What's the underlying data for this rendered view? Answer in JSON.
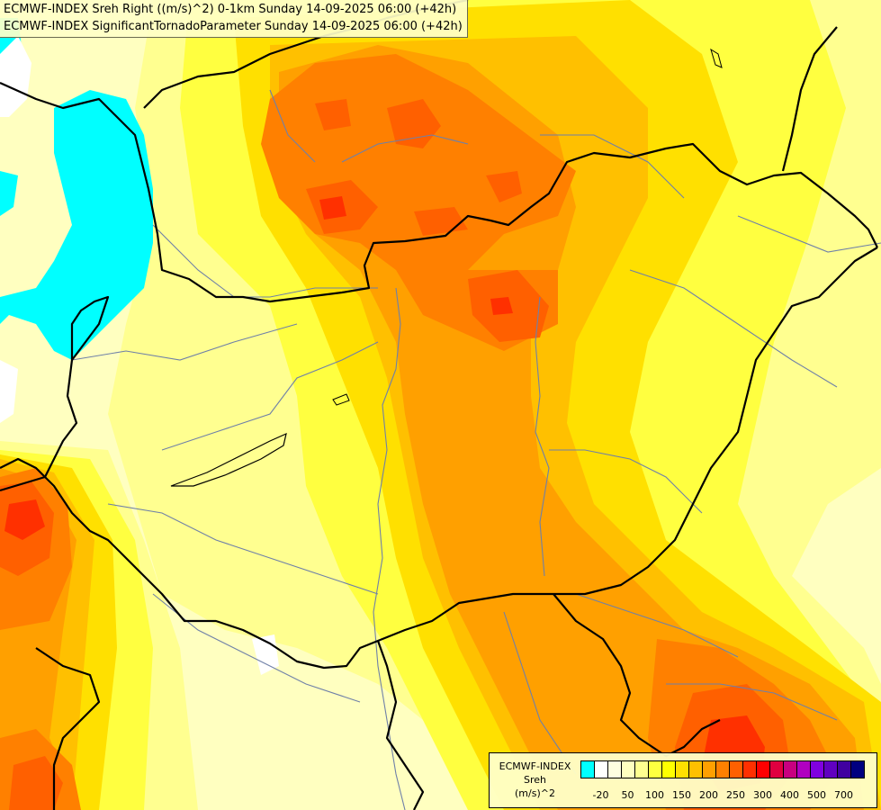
{
  "titles": {
    "line1": "ECMWF-INDEX Sreh Right ((m/s)^2) 0-1km Sunday 14-09-2025 06:00 (+42h)",
    "line2": "ECMWF-INDEX SignificantTornadoParameter Sunday 14-09-2025 06:00 (+42h)"
  },
  "legend": {
    "line1": "ECMWF-INDEX",
    "line2": "Sreh",
    "line3": "(m/s)^2",
    "colors": [
      "#00ffff",
      "#ffffff",
      "#ffffe0",
      "#ffffc0",
      "#ffff90",
      "#ffff40",
      "#ffff00",
      "#ffe000",
      "#ffc000",
      "#ffa000",
      "#ff8000",
      "#ff6000",
      "#ff3000",
      "#ff0000",
      "#e00040",
      "#c80080",
      "#b000c0",
      "#8000e0",
      "#6000c0",
      "#4000a0",
      "#000080"
    ],
    "ticks": [
      "-20",
      "50",
      "100",
      "150",
      "200",
      "250",
      "300",
      "400",
      "500",
      "700"
    ]
  },
  "map_colors": {
    "water_blue": "#00ffff",
    "border": "#000000",
    "river": "#6f80a8"
  }
}
